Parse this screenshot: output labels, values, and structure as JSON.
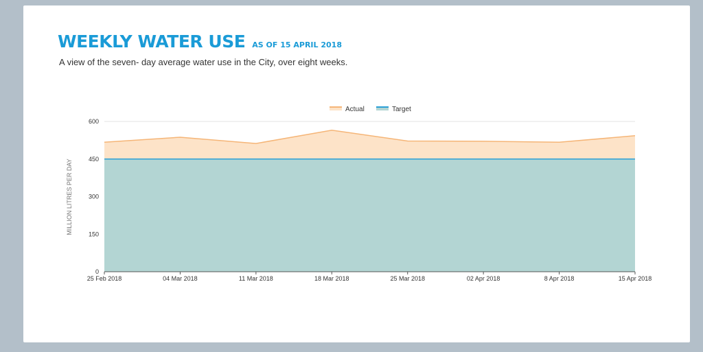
{
  "header": {
    "title": "WEEKLY WATER USE",
    "as_of": "AS OF 15 APRIL 2018",
    "description": "A view of the seven- day average water use in the City, over eight weeks."
  },
  "colors": {
    "title": "#1a9bd7",
    "actual_fill": "#fde3c8",
    "actual_line": "#f5b577",
    "target_fill": "#b3d5d3",
    "target_line": "#2a9fd6"
  },
  "chart_data": {
    "type": "area",
    "categories": [
      "25 Feb 2018",
      "04 Mar 2018",
      "11 Mar 2018",
      "18 Mar 2018",
      "25 Mar 2018",
      "02 Apr 2018",
      "8 Apr 2018",
      "15 Apr 2018"
    ],
    "series": [
      {
        "name": "Actual",
        "values": [
          517,
          537,
          512,
          565,
          522,
          521,
          517,
          543
        ]
      },
      {
        "name": "Target",
        "values": [
          450,
          450,
          450,
          450,
          450,
          450,
          450,
          450
        ]
      }
    ],
    "ylabel": "MILLION LITRES PER DAY",
    "ylim": [
      0,
      600
    ],
    "yticks": [
      "0",
      "150",
      "300",
      "450",
      "600"
    ],
    "grid": true,
    "legend": "top-center"
  }
}
